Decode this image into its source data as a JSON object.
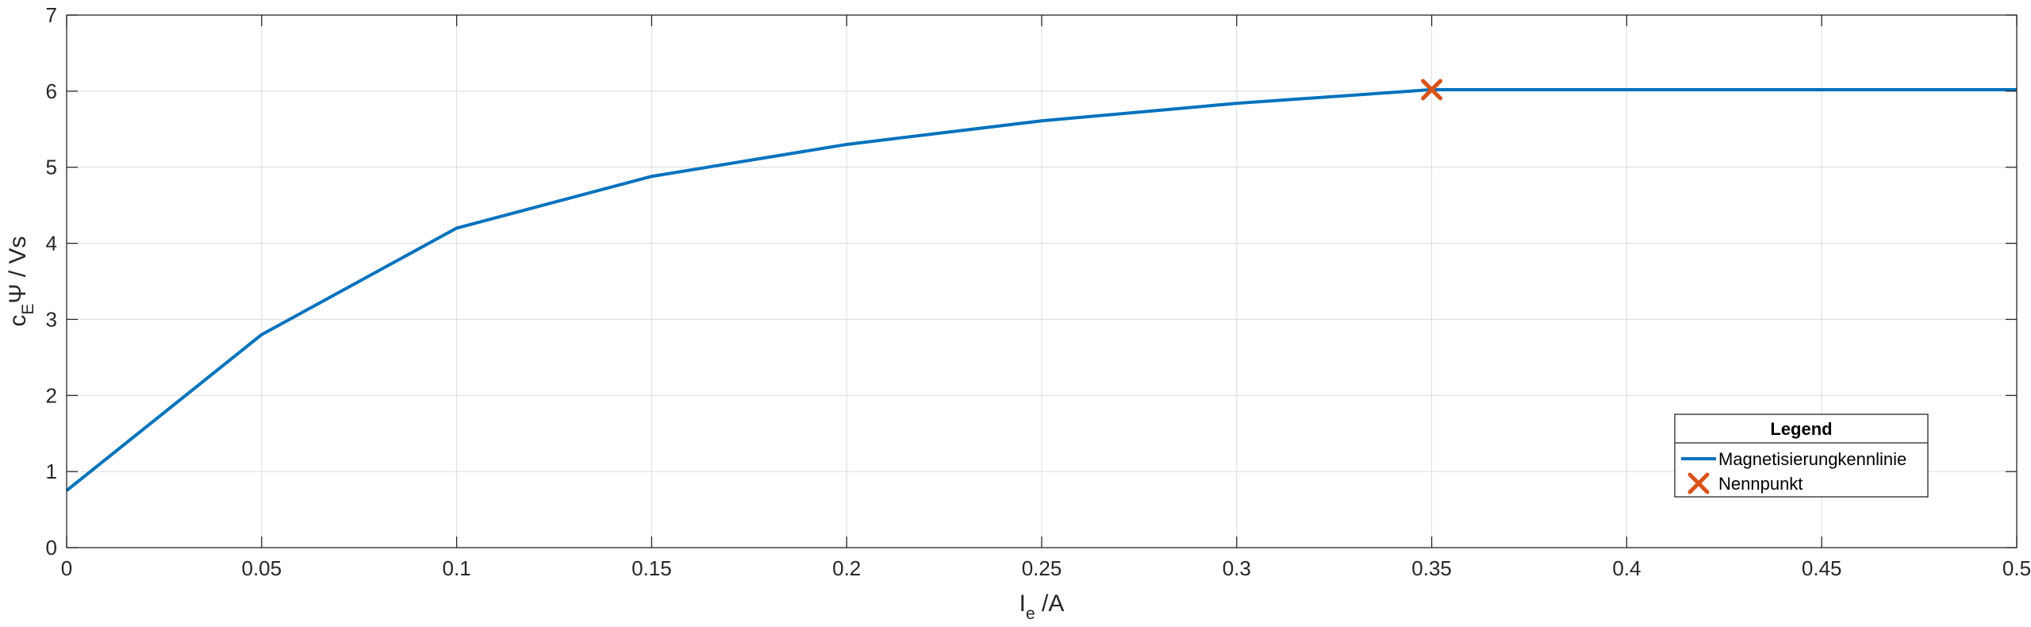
{
  "chart_data": {
    "type": "line",
    "x_axis": {
      "label_main": "I",
      "label_sub": "e",
      "label_unit": " /A",
      "range": [
        0,
        0.5
      ],
      "ticks": [
        0,
        0.05,
        0.1,
        0.15,
        0.2,
        0.25,
        0.3,
        0.35,
        0.4,
        0.45,
        0.5
      ],
      "tick_labels": [
        "0",
        "0.05",
        "0.1",
        "0.15",
        "0.2",
        "0.25",
        "0.3",
        "0.35",
        "0.4",
        "0.45",
        "0.5"
      ]
    },
    "y_axis": {
      "label_main": "c",
      "label_sub": "E",
      "label_rest": "Ψ / Vs",
      "range": [
        0,
        7
      ],
      "ticks": [
        0,
        1,
        2,
        3,
        4,
        5,
        6,
        7
      ],
      "tick_labels": [
        "0",
        "1",
        "2",
        "3",
        "4",
        "5",
        "6",
        "7"
      ]
    },
    "grid": true,
    "series": [
      {
        "name": "Magnetisierungkennlinie",
        "kind": "line",
        "color": "#0072BD",
        "x": [
          0,
          0.05,
          0.1,
          0.15,
          0.2,
          0.25,
          0.3,
          0.35,
          0.5
        ],
        "y": [
          0.75,
          2.8,
          4.2,
          4.88,
          5.3,
          5.61,
          5.84,
          6.02,
          6.02
        ]
      },
      {
        "name": "Nennpunkt",
        "kind": "marker",
        "marker": "x",
        "color": "#D95319",
        "x": [
          0.35
        ],
        "y": [
          6.02
        ]
      }
    ],
    "legend": {
      "title": "Legend",
      "placement": "bottom-right"
    }
  }
}
